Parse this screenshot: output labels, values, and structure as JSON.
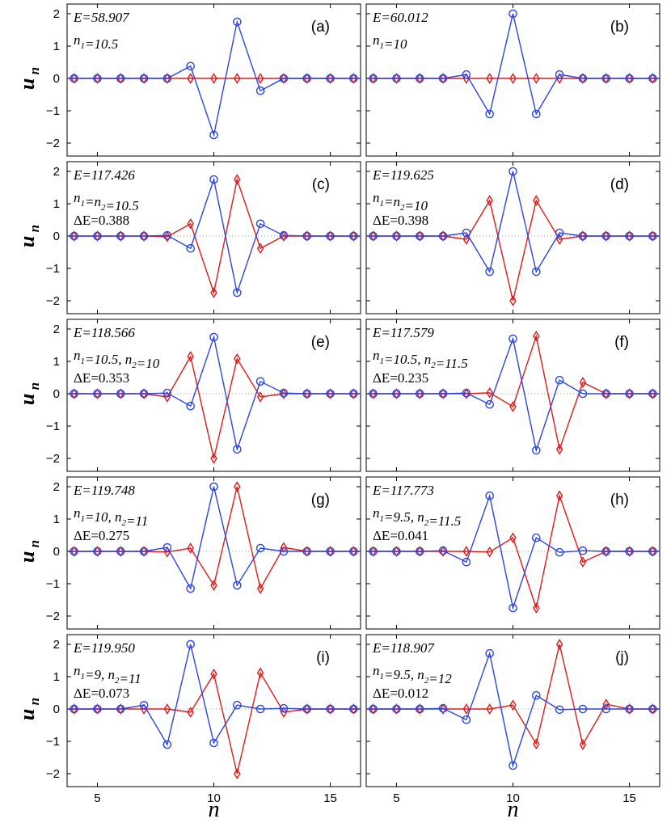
{
  "chart_data": {
    "type": "line",
    "layout": "5 rows x 2 columns of panels",
    "xlabel": "n",
    "ylabel_base": "u",
    "ylabel_sub": "n",
    "xlim": [
      3.7,
      16.3
    ],
    "ylim": [
      -2.4,
      2.3
    ],
    "xticks": [
      5,
      10,
      15
    ],
    "yticks": [
      -2,
      -1,
      0,
      1,
      2
    ],
    "x": [
      4,
      5,
      6,
      7,
      8,
      9,
      10,
      11,
      12,
      13,
      14,
      15,
      16
    ],
    "colors": {
      "blue": "#2b45e0",
      "red": "#e01a1a",
      "zero_line": "#999999"
    },
    "series_names": [
      "u_n (blue circles)",
      "v_n (red diamonds)"
    ],
    "panels": [
      {
        "label": "(a)",
        "annotations": [
          {
            "parts": [
              {
                "t": "E=58.907"
              }
            ]
          },
          {
            "parts": [
              {
                "t": "n"
              },
              {
                "t": "1",
                "sub": true
              },
              {
                "t": "=10.5"
              }
            ]
          }
        ],
        "blue": [
          0,
          0,
          0,
          0,
          0,
          0.38,
          -1.75,
          1.75,
          -0.38,
          0,
          0,
          0,
          0
        ],
        "red": [
          0,
          0,
          0,
          0,
          0,
          0,
          0,
          0,
          0,
          0,
          0,
          0,
          0
        ]
      },
      {
        "label": "(b)",
        "annotations": [
          {
            "parts": [
              {
                "t": "E=60.012"
              }
            ]
          },
          {
            "parts": [
              {
                "t": "n"
              },
              {
                "t": "1",
                "sub": true
              },
              {
                "t": "=10"
              }
            ]
          }
        ],
        "blue": [
          0,
          0,
          0,
          0,
          0.12,
          -1.1,
          2.0,
          -1.1,
          0.12,
          0,
          0,
          0,
          0
        ],
        "red": [
          0,
          0,
          0,
          0,
          0,
          0,
          0,
          0,
          0,
          0,
          0,
          0,
          0
        ]
      },
      {
        "label": "(c)",
        "annotations": [
          {
            "parts": [
              {
                "t": "E=117.426"
              }
            ]
          },
          {
            "parts": [
              {
                "t": "n"
              },
              {
                "t": "1",
                "sub": true
              },
              {
                "t": "=n"
              },
              {
                "t": "2",
                "sub": true
              },
              {
                "t": "=10.5"
              }
            ]
          },
          {
            "parts": [
              {
                "t": "ΔE=0.388"
              }
            ],
            "upright": true
          }
        ],
        "blue": [
          0,
          0,
          0,
          0,
          0.02,
          -0.38,
          1.75,
          -1.75,
          0.38,
          0.02,
          0,
          0,
          0
        ],
        "red": [
          0,
          0,
          0,
          0,
          -0.02,
          0.38,
          -1.75,
          1.75,
          -0.38,
          0,
          0,
          0,
          0
        ]
      },
      {
        "label": "(d)",
        "annotations": [
          {
            "parts": [
              {
                "t": "E=119.625"
              }
            ]
          },
          {
            "parts": [
              {
                "t": "n"
              },
              {
                "t": "1",
                "sub": true
              },
              {
                "t": "=n"
              },
              {
                "t": "2",
                "sub": true
              },
              {
                "t": "=10"
              }
            ]
          },
          {
            "parts": [
              {
                "t": "ΔE=0.398"
              }
            ],
            "upright": true
          }
        ],
        "blue": [
          0,
          0,
          0,
          0,
          0.1,
          -1.1,
          2.0,
          -1.1,
          0.1,
          0,
          0,
          0,
          0
        ],
        "red": [
          0,
          0,
          0,
          0,
          -0.1,
          1.1,
          -2.0,
          1.1,
          -0.1,
          0,
          0,
          0,
          0
        ]
      },
      {
        "label": "(e)",
        "annotations": [
          {
            "parts": [
              {
                "t": "E=118.566"
              }
            ]
          },
          {
            "parts": [
              {
                "t": "n"
              },
              {
                "t": "1",
                "sub": true
              },
              {
                "t": "=10.5, n"
              },
              {
                "t": "2",
                "sub": true
              },
              {
                "t": "=10"
              }
            ]
          },
          {
            "parts": [
              {
                "t": "ΔE=0.353"
              }
            ],
            "upright": true
          }
        ],
        "blue": [
          0,
          0,
          0,
          0,
          0.02,
          -0.38,
          1.75,
          -1.72,
          0.38,
          0.02,
          0,
          0,
          0
        ],
        "red": [
          0,
          0,
          0,
          0,
          -0.1,
          1.15,
          -2.0,
          1.08,
          -0.1,
          0,
          0,
          0,
          0
        ]
      },
      {
        "label": "(f)",
        "annotations": [
          {
            "parts": [
              {
                "t": "E=117.579"
              }
            ]
          },
          {
            "parts": [
              {
                "t": "n"
              },
              {
                "t": "1",
                "sub": true
              },
              {
                "t": "=10.5, n"
              },
              {
                "t": "2",
                "sub": true
              },
              {
                "t": "=11.5"
              }
            ]
          },
          {
            "parts": [
              {
                "t": "ΔE=0.235"
              }
            ],
            "upright": true
          }
        ],
        "blue": [
          0,
          0,
          0,
          0,
          0.02,
          -0.33,
          1.7,
          -1.75,
          0.42,
          0,
          0,
          0,
          0
        ],
        "red": [
          0,
          0,
          0,
          0,
          0,
          0.03,
          -0.4,
          1.78,
          -1.72,
          0.35,
          0,
          0,
          0
        ]
      },
      {
        "label": "(g)",
        "annotations": [
          {
            "parts": [
              {
                "t": "E=119.748"
              }
            ]
          },
          {
            "parts": [
              {
                "t": "n"
              },
              {
                "t": "1",
                "sub": true
              },
              {
                "t": "=10, n"
              },
              {
                "t": "2",
                "sub": true
              },
              {
                "t": "=11"
              }
            ]
          },
          {
            "parts": [
              {
                "t": "ΔE=0.275"
              }
            ],
            "upright": true
          }
        ],
        "blue": [
          0,
          0,
          0,
          0,
          0.12,
          -1.15,
          2.0,
          -1.05,
          0.1,
          0,
          0,
          0,
          0
        ],
        "red": [
          0,
          0,
          0,
          0,
          -0.02,
          0.1,
          -1.05,
          2.0,
          -1.15,
          0.12,
          0,
          0,
          0
        ]
      },
      {
        "label": "(h)",
        "annotations": [
          {
            "parts": [
              {
                "t": "E=117.773"
              }
            ]
          },
          {
            "parts": [
              {
                "t": "n"
              },
              {
                "t": "1",
                "sub": true
              },
              {
                "t": "=9.5, n"
              },
              {
                "t": "2",
                "sub": true
              },
              {
                "t": "=11.5"
              }
            ]
          },
          {
            "parts": [
              {
                "t": "ΔE=0.041"
              }
            ],
            "upright": true
          }
        ],
        "blue": [
          0,
          0,
          0,
          0.02,
          -0.33,
          1.72,
          -1.75,
          0.42,
          -0.03,
          0.02,
          0,
          0,
          0
        ],
        "red": [
          0,
          0,
          0,
          0,
          0,
          -0.02,
          0.42,
          -1.75,
          1.72,
          -0.33,
          0,
          0,
          0
        ]
      },
      {
        "label": "(i)",
        "annotations": [
          {
            "parts": [
              {
                "t": "E=119.950"
              }
            ]
          },
          {
            "parts": [
              {
                "t": "n"
              },
              {
                "t": "1",
                "sub": true
              },
              {
                "t": "=9, n"
              },
              {
                "t": "2",
                "sub": true
              },
              {
                "t": "=11"
              }
            ]
          },
          {
            "parts": [
              {
                "t": "ΔE=0.073"
              }
            ],
            "upright": true
          }
        ],
        "blue": [
          0,
          0,
          0,
          0.12,
          -1.1,
          2.0,
          -1.05,
          0.12,
          0,
          0.02,
          0,
          0,
          0
        ],
        "red": [
          0,
          0,
          0,
          0,
          0,
          -0.1,
          1.08,
          -2.0,
          1.12,
          -0.1,
          0,
          0,
          0
        ]
      },
      {
        "label": "(j)",
        "annotations": [
          {
            "parts": [
              {
                "t": "E=118.907"
              }
            ]
          },
          {
            "parts": [
              {
                "t": "n"
              },
              {
                "t": "1",
                "sub": true
              },
              {
                "t": "=9.5, n"
              },
              {
                "t": "2",
                "sub": true
              },
              {
                "t": "=12"
              }
            ]
          },
          {
            "parts": [
              {
                "t": "ΔE=0.012"
              }
            ],
            "upright": true
          }
        ],
        "blue": [
          0,
          0,
          0,
          0.02,
          -0.33,
          1.72,
          -1.75,
          0.42,
          -0.02,
          0,
          0,
          0,
          0
        ],
        "red": [
          0,
          0,
          0,
          0,
          0,
          0,
          0.12,
          -1.08,
          2.0,
          -1.1,
          0.15,
          0,
          0
        ]
      }
    ]
  }
}
